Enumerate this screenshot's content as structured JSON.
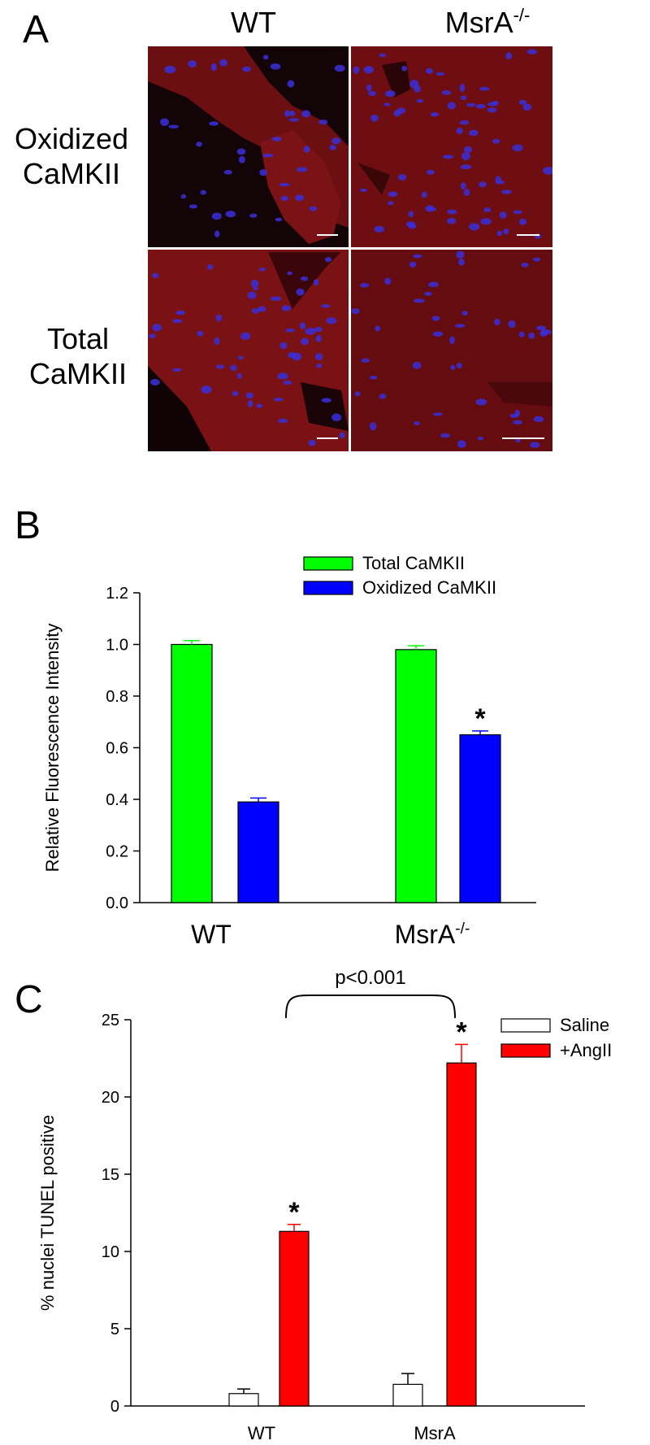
{
  "panel_a": {
    "letter": "A",
    "col_labels": [
      "WT",
      "MsrA"
    ],
    "col_superscript": "-/-",
    "row_labels": [
      [
        "Oxidized",
        "CaMKII"
      ],
      [
        "Total",
        "CaMKII"
      ]
    ]
  },
  "panel_b": {
    "letter": "B"
  },
  "panel_c": {
    "letter": "C",
    "bracket_label": "p<0.001"
  },
  "colors": {
    "green": "#00ff00",
    "blue": "#0000ff",
    "red": "#ff0000",
    "white": "#ffffff",
    "tissue_dark": "#120508",
    "tissue_red": "#7a1010",
    "nuclei": "#3a2fd8"
  },
  "chart_data": [
    {
      "type": "bar",
      "categories": [
        "WT",
        "MsrA"
      ],
      "category_superscripts": [
        "",
        "-/-"
      ],
      "ylabel": "Relative Fluorescence Intensity",
      "ylim": [
        0,
        1.2
      ],
      "yticks": [
        "0.0",
        "0.2",
        "0.4",
        "0.6",
        "0.8",
        "1.0",
        "1.2"
      ],
      "legend_position": "top",
      "series": [
        {
          "name": "Total CaMKII",
          "color": "#00ff00",
          "values": [
            1.0,
            0.98
          ],
          "errors": [
            0.015,
            0.015
          ],
          "significance": [
            "",
            ""
          ]
        },
        {
          "name": "Oxidized CaMKII",
          "color": "#0000ff",
          "values": [
            0.39,
            0.65
          ],
          "errors": [
            0.015,
            0.015
          ],
          "significance": [
            "",
            "*"
          ]
        }
      ]
    },
    {
      "type": "bar",
      "categories": [
        "WT",
        "MsrA"
      ],
      "ylabel": "% nuclei TUNEL positive",
      "ylim": [
        0,
        25
      ],
      "yticks": [
        "0",
        "5",
        "10",
        "15",
        "20",
        "25"
      ],
      "legend_position": "top-right",
      "series": [
        {
          "name": "Saline",
          "color": "#ffffff",
          "values": [
            0.8,
            1.4
          ],
          "errors": [
            0.3,
            0.7
          ],
          "significance": [
            "",
            ""
          ]
        },
        {
          "name": "+AngII",
          "color": "#ff0000",
          "values": [
            11.3,
            22.2
          ],
          "errors": [
            0.45,
            1.2
          ],
          "significance": [
            "*",
            "*"
          ]
        }
      ],
      "annotation": "p<0.001"
    }
  ]
}
